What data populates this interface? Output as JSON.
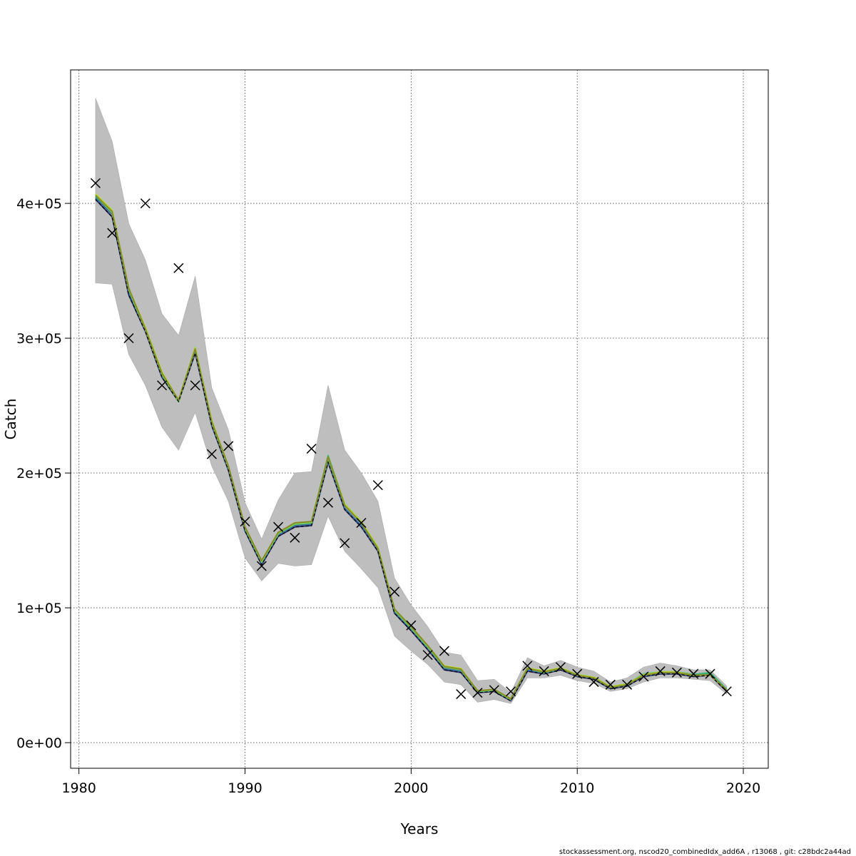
{
  "chart_data": {
    "type": "line",
    "xlabel": "Years",
    "ylabel": "Catch",
    "xlim": [
      1979.5,
      2021.5
    ],
    "ylim": [
      -19000,
      499000
    ],
    "x_ticks": [
      1980,
      1990,
      2000,
      2010,
      2020
    ],
    "y_ticks": [
      0,
      100000,
      200000,
      300000,
      400000
    ],
    "y_tick_labels": [
      "0e+00",
      "1e+05",
      "2e+05",
      "3e+05",
      "4e+05"
    ],
    "grid": true,
    "colors": {
      "band": "#bebebe",
      "series": [
        "#2d2d6e",
        "#3a6fa0",
        "#1f9e89",
        "#35b779",
        "#6ece58",
        "#b5de2b",
        "#8a8a2a"
      ],
      "observed": "#000000"
    },
    "years": [
      1981,
      1982,
      1983,
      1984,
      1985,
      1986,
      1987,
      1988,
      1989,
      1990,
      1991,
      1992,
      1993,
      1994,
      1995,
      1996,
      1997,
      1998,
      1999,
      2000,
      2001,
      2002,
      2003,
      2004,
      2005,
      2006,
      2007,
      2008,
      2009,
      2010,
      2011,
      2012,
      2013,
      2014,
      2015,
      2016,
      2017,
      2018,
      2019
    ],
    "band_upper": [
      478000,
      446000,
      385000,
      358000,
      318000,
      302000,
      346000,
      263000,
      232000,
      178000,
      151000,
      180000,
      200000,
      201000,
      265000,
      217000,
      200000,
      179000,
      122000,
      102000,
      86000,
      67000,
      65000,
      46000,
      47000,
      37000,
      63000,
      57000,
      61000,
      56000,
      53000,
      45000,
      48000,
      56000,
      59000,
      57000,
      54000,
      54000,
      42000
    ],
    "band_lower": [
      341000,
      340000,
      288000,
      265000,
      234000,
      217000,
      245000,
      205000,
      179000,
      137000,
      120000,
      133000,
      131000,
      132000,
      168000,
      142000,
      129000,
      115000,
      79000,
      68000,
      58000,
      45000,
      43000,
      30000,
      32000,
      29000,
      48000,
      48000,
      50000,
      46000,
      44000,
      38000,
      40000,
      45000,
      48000,
      48000,
      47000,
      46000,
      36000
    ],
    "fit_lines": [
      [
        403000,
        390000,
        332000,
        305000,
        271000,
        253000,
        289000,
        235000,
        202000,
        157000,
        132000,
        153000,
        160000,
        161000,
        208000,
        173000,
        160000,
        142000,
        96000,
        83000,
        69000,
        54000,
        52000,
        37000,
        38000,
        31000,
        53000,
        51000,
        54000,
        49000,
        47000,
        40000,
        42000,
        49000,
        51000,
        51000,
        49000,
        50000,
        38000
      ],
      [
        404000,
        392000,
        334000,
        306000,
        272000,
        254000,
        290000,
        236000,
        203000,
        158000,
        133000,
        154000,
        161000,
        162000,
        209000,
        174000,
        161000,
        143000,
        97000,
        84000,
        70000,
        55000,
        53000,
        37500,
        38500,
        31500,
        54000,
        51500,
        54500,
        49500,
        47500,
        40500,
        42500,
        49500,
        51500,
        51500,
        50000,
        51000,
        38500
      ],
      [
        405000,
        394000,
        336000,
        307000,
        274000,
        253000,
        292000,
        237000,
        204000,
        159000,
        134000,
        155000,
        162000,
        163000,
        211000,
        176000,
        163000,
        144000,
        98000,
        85000,
        71000,
        56000,
        54000,
        38000,
        39000,
        32000,
        55000,
        52000,
        55000,
        50000,
        48000,
        41000,
        43000,
        50000,
        52000,
        52000,
        50000,
        51000,
        39000
      ],
      [
        406000,
        394000,
        337000,
        307000,
        274000,
        254000,
        293000,
        238000,
        205000,
        160000,
        135000,
        156000,
        163000,
        164000,
        213000,
        177000,
        164000,
        145000,
        99000,
        86000,
        72000,
        56500,
        54500,
        38500,
        39500,
        32500,
        55500,
        52500,
        55500,
        50500,
        48500,
        41500,
        43500,
        51000,
        52500,
        52500,
        50500,
        52000,
        39500
      ],
      [
        406000,
        393000,
        336000,
        306000,
        273000,
        253000,
        292000,
        237000,
        204000,
        159000,
        134000,
        155000,
        162000,
        163000,
        211000,
        176000,
        163000,
        144000,
        98000,
        85000,
        71000,
        56000,
        54000,
        38000,
        39000,
        32000,
        55000,
        52000,
        55000,
        50000,
        48000,
        41000,
        43000,
        50000,
        52000,
        52000,
        49500,
        50500,
        39000
      ],
      [
        407000,
        395000,
        337000,
        308000,
        275000,
        254000,
        293000,
        239000,
        205000,
        160000,
        135000,
        156000,
        163000,
        164000,
        212000,
        177000,
        164000,
        145000,
        99000,
        86000,
        72000,
        57000,
        55000,
        38500,
        39500,
        32500,
        55500,
        53000,
        55500,
        50500,
        48500,
        41500,
        43500,
        50500,
        52500,
        52500,
        50000,
        50000,
        39000
      ],
      [
        406000,
        394000,
        337000,
        307000,
        274000,
        254000,
        292000,
        238000,
        205000,
        160000,
        135000,
        156000,
        163000,
        164000,
        212000,
        176000,
        163000,
        144000,
        99000,
        86000,
        72000,
        56500,
        54500,
        38500,
        39500,
        32500,
        55000,
        52500,
        55000,
        50000,
        48000,
        41000,
        43000,
        50000,
        52000,
        52000,
        50000,
        50500,
        39000
      ]
    ],
    "observed_x": [
      1981,
      1982,
      1983,
      1984,
      1985,
      1986,
      1987,
      1988,
      1989,
      1990,
      1991,
      1992,
      1993,
      1994,
      1995,
      1996,
      1997,
      1998,
      1999,
      2000,
      2001,
      2002,
      2003,
      2004,
      2005,
      2006,
      2007,
      2008,
      2009,
      2010,
      2011,
      2012,
      2013,
      2014,
      2015,
      2016,
      2017,
      2018,
      2019
    ],
    "observed_y": [
      415000,
      378000,
      300000,
      400000,
      265000,
      352000,
      265000,
      214000,
      220000,
      164000,
      131000,
      160000,
      152000,
      218000,
      178000,
      148000,
      163000,
      191000,
      112000,
      87000,
      65000,
      68000,
      36000,
      37000,
      39000,
      38000,
      57000,
      53000,
      56000,
      51000,
      45000,
      43000,
      43000,
      49000,
      53000,
      52000,
      51000,
      51000,
      38000
    ]
  },
  "footer": "stockassessment.org, nscod20_combinedIdx_add6A , r13068 , git: c28bdc2a44ad"
}
